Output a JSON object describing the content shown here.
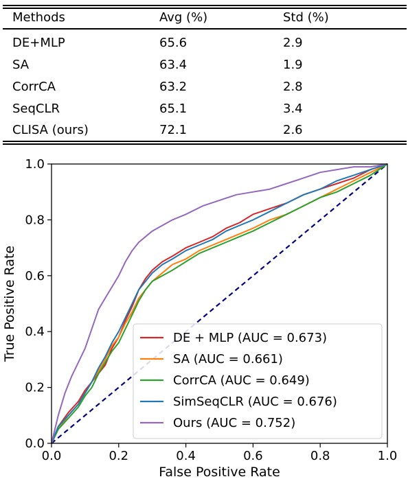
{
  "table": {
    "headers": [
      "Methods",
      "Avg (%)",
      "Std (%)"
    ],
    "rows": [
      [
        "DE+MLP",
        "65.6",
        "2.9"
      ],
      [
        "SA",
        "63.4",
        "1.9"
      ],
      [
        "CorrCA",
        "63.2",
        "2.8"
      ],
      [
        "SeqCLR",
        "65.1",
        "3.4"
      ],
      [
        "CLISA (ours)",
        "72.1",
        "2.6"
      ]
    ]
  },
  "chart_data": {
    "type": "line",
    "title": "",
    "xlabel": "False Positive Rate",
    "ylabel": "True Positive Rate",
    "xlim": [
      0.0,
      1.0
    ],
    "ylim": [
      0.0,
      1.0
    ],
    "xticks": [
      "0.0",
      "0.2",
      "0.4",
      "0.6",
      "0.8",
      "1.0"
    ],
    "yticks": [
      "0.0",
      "0.2",
      "0.4",
      "0.6",
      "0.8",
      "1.0"
    ],
    "grid": false,
    "legend_position": "lower-right",
    "diagonal": {
      "color": "#000080",
      "style": "dashed",
      "points": [
        [
          0,
          0
        ],
        [
          1,
          1
        ]
      ]
    },
    "series": [
      {
        "name": "DE + MLP (AUC = 0.673)",
        "color": "#d62728",
        "points": [
          [
            0,
            0
          ],
          [
            0.02,
            0.06
          ],
          [
            0.05,
            0.11
          ],
          [
            0.08,
            0.15
          ],
          [
            0.1,
            0.19
          ],
          [
            0.12,
            0.22
          ],
          [
            0.14,
            0.25
          ],
          [
            0.16,
            0.28
          ],
          [
            0.18,
            0.34
          ],
          [
            0.2,
            0.38
          ],
          [
            0.22,
            0.44
          ],
          [
            0.24,
            0.49
          ],
          [
            0.26,
            0.55
          ],
          [
            0.28,
            0.59
          ],
          [
            0.3,
            0.62
          ],
          [
            0.33,
            0.65
          ],
          [
            0.36,
            0.67
          ],
          [
            0.4,
            0.7
          ],
          [
            0.44,
            0.72
          ],
          [
            0.48,
            0.74
          ],
          [
            0.52,
            0.77
          ],
          [
            0.56,
            0.79
          ],
          [
            0.6,
            0.82
          ],
          [
            0.65,
            0.84
          ],
          [
            0.7,
            0.86
          ],
          [
            0.75,
            0.89
          ],
          [
            0.8,
            0.91
          ],
          [
            0.85,
            0.93
          ],
          [
            0.9,
            0.95
          ],
          [
            0.95,
            0.98
          ],
          [
            1,
            1
          ]
        ]
      },
      {
        "name": "SA (AUC = 0.661)",
        "color": "#ff7f0e",
        "points": [
          [
            0,
            0
          ],
          [
            0.02,
            0.05
          ],
          [
            0.05,
            0.1
          ],
          [
            0.08,
            0.14
          ],
          [
            0.1,
            0.18
          ],
          [
            0.12,
            0.22
          ],
          [
            0.14,
            0.26
          ],
          [
            0.16,
            0.3
          ],
          [
            0.18,
            0.35
          ],
          [
            0.2,
            0.38
          ],
          [
            0.22,
            0.43
          ],
          [
            0.24,
            0.47
          ],
          [
            0.26,
            0.52
          ],
          [
            0.28,
            0.55
          ],
          [
            0.3,
            0.58
          ],
          [
            0.33,
            0.61
          ],
          [
            0.36,
            0.64
          ],
          [
            0.4,
            0.66
          ],
          [
            0.44,
            0.69
          ],
          [
            0.48,
            0.71
          ],
          [
            0.52,
            0.73
          ],
          [
            0.56,
            0.75
          ],
          [
            0.6,
            0.77
          ],
          [
            0.65,
            0.8
          ],
          [
            0.7,
            0.82
          ],
          [
            0.75,
            0.85
          ],
          [
            0.8,
            0.88
          ],
          [
            0.85,
            0.91
          ],
          [
            0.9,
            0.94
          ],
          [
            0.95,
            0.97
          ],
          [
            1,
            1
          ]
        ]
      },
      {
        "name": "CorrCA (AUC = 0.649)",
        "color": "#2ca02c",
        "points": [
          [
            0,
            0
          ],
          [
            0.02,
            0.05
          ],
          [
            0.05,
            0.09
          ],
          [
            0.08,
            0.13
          ],
          [
            0.1,
            0.17
          ],
          [
            0.12,
            0.2
          ],
          [
            0.14,
            0.25
          ],
          [
            0.16,
            0.29
          ],
          [
            0.18,
            0.33
          ],
          [
            0.2,
            0.36
          ],
          [
            0.22,
            0.41
          ],
          [
            0.24,
            0.46
          ],
          [
            0.26,
            0.51
          ],
          [
            0.28,
            0.55
          ],
          [
            0.3,
            0.58
          ],
          [
            0.33,
            0.6
          ],
          [
            0.36,
            0.62
          ],
          [
            0.4,
            0.65
          ],
          [
            0.44,
            0.68
          ],
          [
            0.48,
            0.7
          ],
          [
            0.52,
            0.72
          ],
          [
            0.56,
            0.74
          ],
          [
            0.6,
            0.76
          ],
          [
            0.65,
            0.79
          ],
          [
            0.7,
            0.82
          ],
          [
            0.75,
            0.85
          ],
          [
            0.8,
            0.88
          ],
          [
            0.85,
            0.9
          ],
          [
            0.9,
            0.93
          ],
          [
            0.95,
            0.96
          ],
          [
            1,
            1
          ]
        ]
      },
      {
        "name": "SimSeqCLR (AUC = 0.676)",
        "color": "#1f77b4",
        "points": [
          [
            0,
            0
          ],
          [
            0.02,
            0.06
          ],
          [
            0.05,
            0.1
          ],
          [
            0.08,
            0.14
          ],
          [
            0.1,
            0.18
          ],
          [
            0.12,
            0.22
          ],
          [
            0.14,
            0.27
          ],
          [
            0.16,
            0.31
          ],
          [
            0.18,
            0.36
          ],
          [
            0.2,
            0.4
          ],
          [
            0.22,
            0.45
          ],
          [
            0.24,
            0.5
          ],
          [
            0.26,
            0.55
          ],
          [
            0.28,
            0.58
          ],
          [
            0.3,
            0.61
          ],
          [
            0.33,
            0.64
          ],
          [
            0.36,
            0.66
          ],
          [
            0.4,
            0.69
          ],
          [
            0.44,
            0.71
          ],
          [
            0.48,
            0.73
          ],
          [
            0.52,
            0.76
          ],
          [
            0.56,
            0.78
          ],
          [
            0.6,
            0.8
          ],
          [
            0.65,
            0.83
          ],
          [
            0.7,
            0.86
          ],
          [
            0.75,
            0.89
          ],
          [
            0.8,
            0.91
          ],
          [
            0.85,
            0.94
          ],
          [
            0.9,
            0.96
          ],
          [
            0.95,
            0.98
          ],
          [
            1,
            1
          ]
        ]
      },
      {
        "name": "Ours (AUC = 0.752)",
        "color": "#9467bd",
        "points": [
          [
            0,
            0
          ],
          [
            0.02,
            0.1
          ],
          [
            0.04,
            0.18
          ],
          [
            0.06,
            0.24
          ],
          [
            0.08,
            0.29
          ],
          [
            0.1,
            0.34
          ],
          [
            0.12,
            0.41
          ],
          [
            0.14,
            0.48
          ],
          [
            0.16,
            0.52
          ],
          [
            0.18,
            0.56
          ],
          [
            0.2,
            0.6
          ],
          [
            0.22,
            0.65
          ],
          [
            0.24,
            0.69
          ],
          [
            0.26,
            0.72
          ],
          [
            0.28,
            0.74
          ],
          [
            0.3,
            0.76
          ],
          [
            0.33,
            0.78
          ],
          [
            0.36,
            0.8
          ],
          [
            0.4,
            0.82
          ],
          [
            0.45,
            0.85
          ],
          [
            0.5,
            0.87
          ],
          [
            0.55,
            0.89
          ],
          [
            0.6,
            0.9
          ],
          [
            0.65,
            0.91
          ],
          [
            0.7,
            0.93
          ],
          [
            0.75,
            0.95
          ],
          [
            0.8,
            0.97
          ],
          [
            0.85,
            0.98
          ],
          [
            0.9,
            0.99
          ],
          [
            0.95,
            0.99
          ],
          [
            1,
            1
          ]
        ]
      }
    ]
  }
}
